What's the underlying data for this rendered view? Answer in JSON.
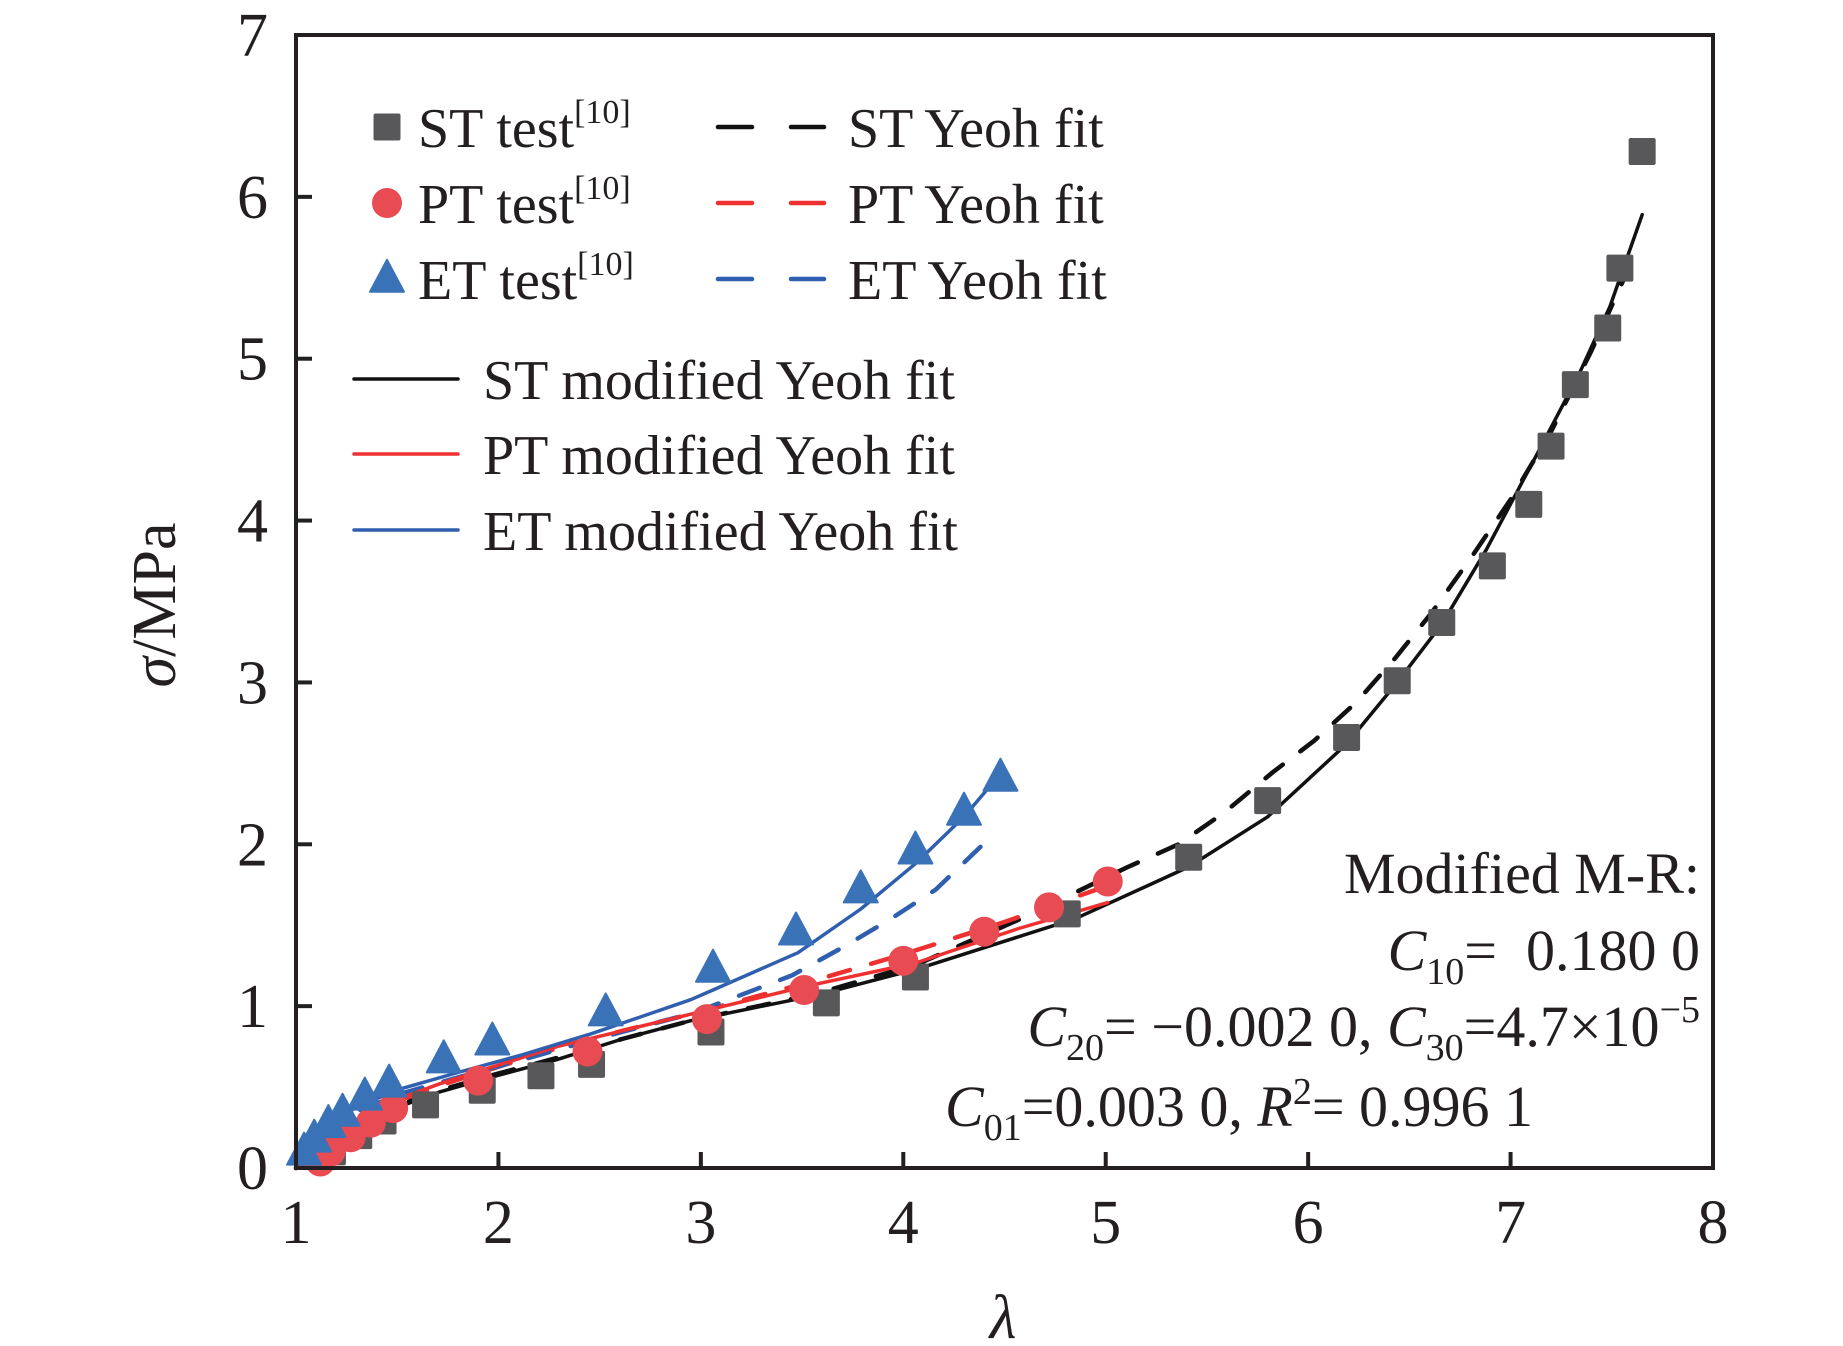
{
  "chart_data": {
    "type": "scatter",
    "title": "",
    "xlabel": "λ",
    "ylabel_symbol": "σ",
    "ylabel_unit": "/MPa",
    "xlim": [
      1,
      8
    ],
    "ylim": [
      0,
      7
    ],
    "xticks": [
      1,
      2,
      3,
      4,
      5,
      6,
      7,
      8
    ],
    "yticks": [
      0,
      1,
      2,
      3,
      4,
      5,
      6,
      7
    ],
    "grid": false,
    "legend_position": "top-left",
    "colors": {
      "ST": "#58585a",
      "PT": "#e84b52",
      "ET": "#3a72b8",
      "ST_line": "#111111",
      "PT_line": "#ee3030",
      "ET_line": "#2f5fae",
      "axis": "#231f20"
    },
    "series": [
      {
        "name": "ST test",
        "ref": "[10]",
        "kind": "markers",
        "marker": "square",
        "color_key": "ST",
        "x": [
          1.18,
          1.31,
          1.43,
          1.64,
          1.92,
          2.21,
          2.46,
          3.05,
          3.62,
          4.06,
          4.81,
          5.41,
          5.8,
          6.19,
          6.44,
          6.66,
          6.91,
          7.09,
          7.2,
          7.32,
          7.48,
          7.54,
          7.65
        ],
        "y": [
          0.1,
          0.2,
          0.29,
          0.39,
          0.48,
          0.57,
          0.64,
          0.84,
          1.02,
          1.18,
          1.57,
          1.92,
          2.27,
          2.66,
          3.01,
          3.37,
          3.72,
          4.1,
          4.46,
          4.84,
          5.19,
          5.56,
          6.28
        ]
      },
      {
        "name": "PT test",
        "ref": "[10]",
        "kind": "markers",
        "marker": "circle",
        "color_key": "PT",
        "x": [
          1.12,
          1.17,
          1.27,
          1.37,
          1.48,
          1.9,
          2.44,
          3.03,
          3.51,
          4.0,
          4.4,
          4.72,
          5.01
        ],
        "y": [
          0.04,
          0.1,
          0.19,
          0.28,
          0.37,
          0.54,
          0.72,
          0.92,
          1.1,
          1.28,
          1.46,
          1.61,
          1.77
        ]
      },
      {
        "name": "ET test",
        "ref": "[10]",
        "kind": "markers",
        "marker": "triangle",
        "color_key": "ET",
        "x": [
          1.04,
          1.09,
          1.16,
          1.23,
          1.34,
          1.46,
          1.73,
          1.97,
          2.53,
          3.06,
          3.47,
          3.79,
          4.06,
          4.3,
          4.48
        ],
        "y": [
          0.1,
          0.18,
          0.27,
          0.34,
          0.44,
          0.52,
          0.67,
          0.78,
          0.96,
          1.23,
          1.46,
          1.72,
          1.96,
          2.2,
          2.41
        ]
      },
      {
        "name": "ST Yeoh fit",
        "kind": "line",
        "dash": true,
        "color_key": "ST_line",
        "x": [
          1.0,
          1.04,
          1.17,
          1.3,
          1.47,
          1.71,
          1.96,
          2.29,
          2.62,
          2.95,
          3.58,
          4.07,
          4.6,
          5.11,
          5.36,
          5.59,
          5.82,
          6.03,
          6.24,
          6.43,
          6.61,
          6.81,
          7.0,
          7.2,
          7.4,
          7.62
        ],
        "y": [
          0.0,
          0.02,
          0.16,
          0.27,
          0.37,
          0.48,
          0.57,
          0.68,
          0.8,
          0.91,
          1.08,
          1.26,
          1.55,
          1.86,
          2.0,
          2.2,
          2.44,
          2.64,
          2.88,
          3.15,
          3.43,
          3.78,
          4.13,
          4.55,
          5.05,
          5.66
        ]
      },
      {
        "name": "PT Yeoh fit",
        "kind": "line",
        "dash": true,
        "color_key": "PT_line",
        "x": [
          1.0,
          1.04,
          1.17,
          1.3,
          1.47,
          1.71,
          1.96,
          2.29,
          2.62,
          2.95,
          3.51,
          4.0,
          4.5,
          5.0
        ],
        "y": [
          0.0,
          0.02,
          0.17,
          0.29,
          0.4,
          0.51,
          0.61,
          0.74,
          0.85,
          0.95,
          1.14,
          1.32,
          1.52,
          1.74
        ]
      },
      {
        "name": "ET Yeoh fit",
        "kind": "line",
        "dash": true,
        "color_key": "ET_line",
        "x": [
          1.0,
          1.04,
          1.13,
          1.3,
          1.52,
          1.8,
          2.12,
          2.46,
          2.97,
          3.45,
          3.71,
          3.94,
          4.16,
          4.42
        ],
        "y": [
          0.0,
          0.04,
          0.2,
          0.35,
          0.46,
          0.56,
          0.67,
          0.79,
          0.96,
          1.19,
          1.37,
          1.54,
          1.72,
          2.03
        ]
      },
      {
        "name": "ST modified Yeoh fit",
        "kind": "line",
        "dash": false,
        "color_key": "ST_line",
        "x": [
          1.0,
          1.04,
          1.17,
          1.3,
          1.47,
          1.71,
          1.96,
          2.29,
          2.62,
          2.95,
          3.58,
          4.07,
          4.85,
          5.41,
          5.8,
          6.19,
          6.44,
          6.66,
          6.88,
          7.16,
          7.34,
          7.49,
          7.65
        ],
        "y": [
          0.0,
          0.01,
          0.15,
          0.26,
          0.36,
          0.47,
          0.56,
          0.67,
          0.8,
          0.91,
          1.07,
          1.23,
          1.54,
          1.86,
          2.17,
          2.62,
          3.0,
          3.36,
          3.82,
          4.48,
          4.91,
          5.32,
          5.89
        ]
      },
      {
        "name": "PT modified Yeoh fit",
        "kind": "line",
        "dash": false,
        "color_key": "PT_line",
        "x": [
          1.0,
          1.04,
          1.17,
          1.3,
          1.47,
          1.71,
          1.96,
          2.29,
          2.62,
          2.95,
          3.51,
          4.07,
          4.57,
          5.01
        ],
        "y": [
          0.0,
          0.01,
          0.18,
          0.3,
          0.41,
          0.52,
          0.62,
          0.75,
          0.85,
          0.95,
          1.12,
          1.27,
          1.48,
          1.64
        ]
      },
      {
        "name": "ET modified Yeoh fit",
        "kind": "line",
        "dash": false,
        "color_key": "ET_line",
        "x": [
          1.0,
          1.04,
          1.13,
          1.3,
          1.52,
          1.8,
          2.12,
          2.46,
          2.95,
          3.06,
          3.48,
          3.79,
          4.06,
          4.3,
          4.47
        ],
        "y": [
          0.0,
          0.05,
          0.22,
          0.38,
          0.49,
          0.59,
          0.7,
          0.83,
          1.04,
          1.1,
          1.33,
          1.6,
          1.88,
          2.17,
          2.42
        ]
      }
    ],
    "legend": {
      "markers": [
        {
          "label": "ST test",
          "sup": "[10]",
          "marker": "square",
          "color_key": "ST"
        },
        {
          "label": "PT test",
          "sup": "[10]",
          "marker": "circle",
          "color_key": "PT"
        },
        {
          "label": "ET test",
          "sup": "[10]",
          "marker": "triangle",
          "color_key": "ET"
        }
      ],
      "dashed": [
        {
          "label": "ST Yeoh fit",
          "color_key": "ST_line"
        },
        {
          "label": "PT Yeoh fit",
          "color_key": "PT_line"
        },
        {
          "label": "ET Yeoh fit",
          "color_key": "ET_line"
        }
      ],
      "solid": [
        {
          "label": "ST modified Yeoh fit",
          "color_key": "ST_line"
        },
        {
          "label": "PT modified Yeoh fit",
          "color_key": "PT_line"
        },
        {
          "label": "ET modified Yeoh fit",
          "color_key": "ET_line"
        }
      ]
    },
    "annotation": {
      "title": "Modified M-R:",
      "line1": {
        "sym": "C",
        "sub": "10",
        "eq": "=  0.180 0"
      },
      "line2": {
        "sym1": "C",
        "sub1": "20",
        "eq1": "= −0.002 0, ",
        "sym2": "C",
        "sub2": "30",
        "eq2": "=4.7×10",
        "exp": "−5"
      },
      "line3": {
        "sym1": "C",
        "sub1": "01",
        "eq1": "=0.003 0, ",
        "sym2": "R",
        "sup2": "2",
        "eq2": "= 0.996 1"
      }
    }
  }
}
